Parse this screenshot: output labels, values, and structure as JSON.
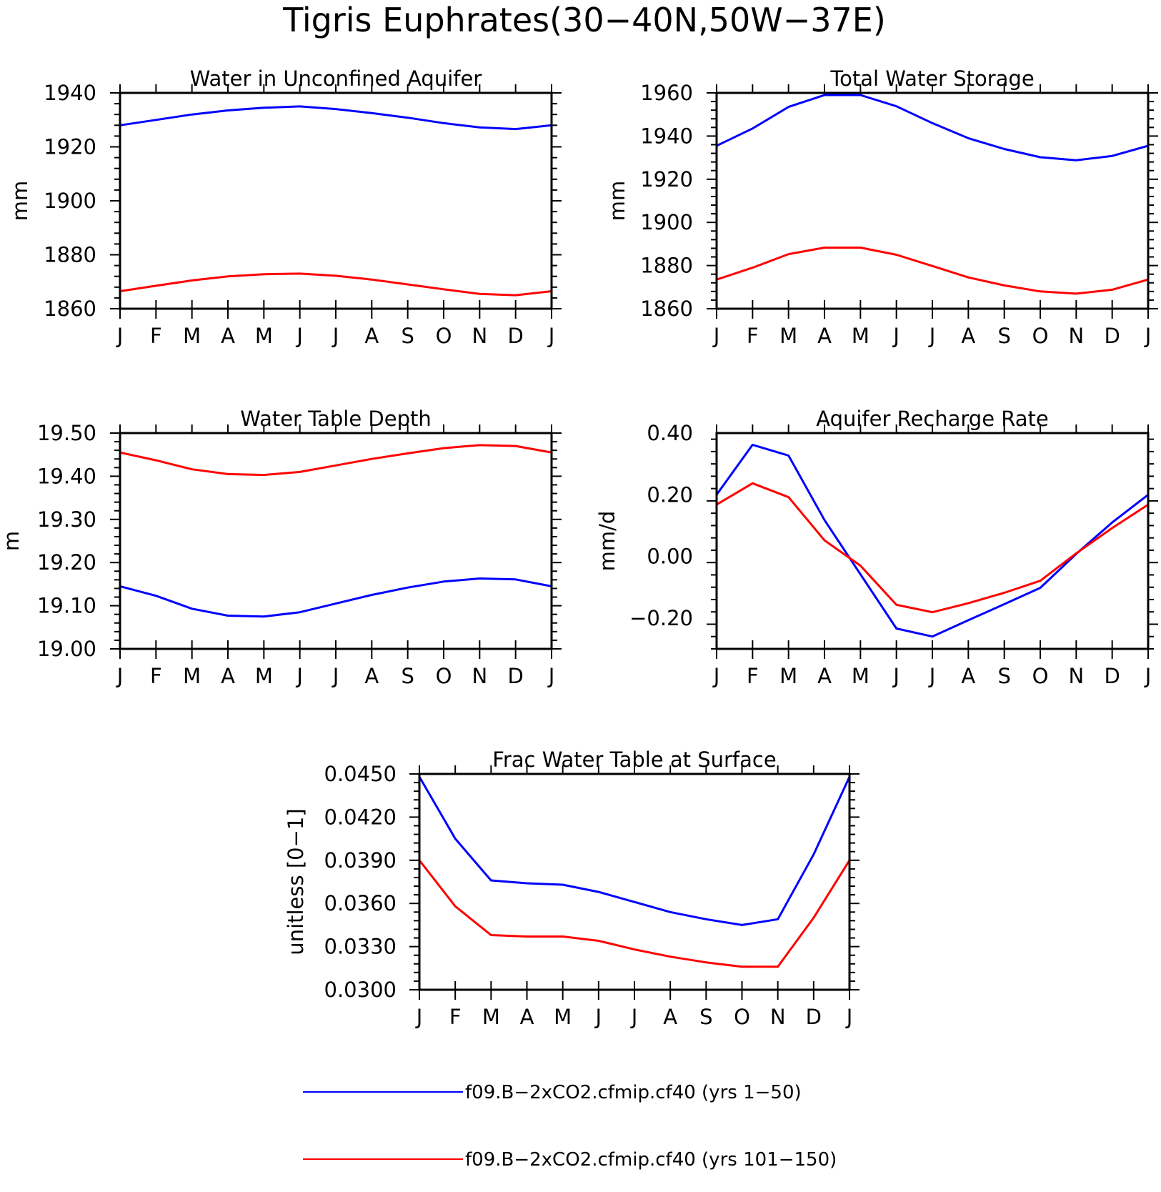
{
  "title": "Tigris Euphrates(30−40N,50W−37E)",
  "colors": {
    "series_1": "#0000ff",
    "series_2": "#ff0000",
    "axis": "#000000"
  },
  "legend": [
    {
      "label": "f09.B−2xCO2.cfmip.cf40 (yrs 1−50)",
      "color": "#0000ff"
    },
    {
      "label": "f09.B−2xCO2.cfmip.cf40 (yrs 101−150)",
      "color": "#ff0000"
    }
  ],
  "chart_data": [
    {
      "type": "line",
      "title": "Water in Unconfined Aquifer",
      "ylabel": "mm",
      "xlabel": "",
      "categories": [
        "J",
        "F",
        "M",
        "A",
        "M",
        "J",
        "J",
        "A",
        "S",
        "O",
        "N",
        "D",
        "J"
      ],
      "ylim": [
        1860,
        1940
      ],
      "yticks": [
        "1940",
        "1920",
        "1900",
        "1880",
        "1860"
      ],
      "grid": false,
      "series": [
        {
          "name": "f09.B−2xCO2.cfmip.cf40 (yrs 1−50)",
          "color": "#0000ff",
          "values": [
            1928,
            1930,
            1932,
            1933.5,
            1934.5,
            1935,
            1934,
            1932.5,
            1930.8,
            1928.8,
            1927.2,
            1926.6,
            1928
          ]
        },
        {
          "name": "f09.B−2xCO2.cfmip.cf40 (yrs 101−150)",
          "color": "#ff0000",
          "values": [
            1866.5,
            1868.5,
            1870.5,
            1872,
            1872.8,
            1873,
            1872.2,
            1870.8,
            1869,
            1867.2,
            1865.5,
            1865,
            1866.5
          ]
        }
      ]
    },
    {
      "type": "line",
      "title": "Total Water Storage",
      "ylabel": "mm",
      "xlabel": "",
      "categories": [
        "J",
        "F",
        "M",
        "A",
        "M",
        "J",
        "J",
        "A",
        "S",
        "O",
        "N",
        "D",
        "J"
      ],
      "ylim": [
        1860,
        1960
      ],
      "yticks": [
        "1960",
        "1940",
        "1920",
        "1900",
        "1880",
        "1860"
      ],
      "grid": false,
      "series": [
        {
          "name": "f09.B−2xCO2.cfmip.cf40 (yrs 1−50)",
          "color": "#0000ff",
          "values": [
            1935.5,
            1943.5,
            1953.5,
            1959,
            1959,
            1953.8,
            1946,
            1939,
            1934,
            1930.2,
            1928.8,
            1930.8,
            1935.5
          ]
        },
        {
          "name": "f09.B−2xCO2.cfmip.cf40 (yrs 101−150)",
          "color": "#ff0000",
          "values": [
            1873.5,
            1879,
            1885.3,
            1888.3,
            1888.3,
            1885,
            1879.8,
            1874.5,
            1870.8,
            1868,
            1867,
            1868.8,
            1873.5
          ]
        }
      ]
    },
    {
      "type": "line",
      "title": "Water Table Depth",
      "ylabel": "m",
      "xlabel": "",
      "categories": [
        "J",
        "F",
        "M",
        "A",
        "M",
        "J",
        "J",
        "A",
        "S",
        "O",
        "N",
        "D",
        "J"
      ],
      "ylim": [
        19.0,
        19.5
      ],
      "yticks": [
        "19.50",
        "19.40",
        "19.30",
        "19.20",
        "19.10",
        "19.00"
      ],
      "grid": false,
      "series": [
        {
          "name": "f09.B−2xCO2.cfmip.cf40 (yrs 1−50)",
          "color": "#0000ff",
          "values": [
            19.145,
            19.123,
            19.093,
            19.077,
            19.075,
            19.085,
            19.105,
            19.125,
            19.142,
            19.156,
            19.163,
            19.161,
            19.145
          ]
        },
        {
          "name": "f09.B−2xCO2.cfmip.cf40 (yrs 101−150)",
          "color": "#ff0000",
          "values": [
            19.455,
            19.437,
            19.416,
            19.405,
            19.403,
            19.41,
            19.425,
            19.44,
            19.453,
            19.465,
            19.472,
            19.47,
            19.455
          ]
        }
      ]
    },
    {
      "type": "line",
      "title": "Aquifer Recharge Rate",
      "ylabel": "mm/d",
      "xlabel": "",
      "categories": [
        "J",
        "F",
        "M",
        "A",
        "M",
        "J",
        "J",
        "A",
        "S",
        "O",
        "N",
        "D",
        "J"
      ],
      "ylim": [
        -0.3,
        0.4
      ],
      "yticks": [
        "0.40",
        "0.20",
        "0.00",
        "−0.20"
      ],
      "grid": false,
      "series": [
        {
          "name": "f09.B−2xCO2.cfmip.cf40 (yrs 1−50)",
          "color": "#0000ff",
          "values": [
            0.2,
            0.362,
            0.327,
            0.118,
            -0.058,
            -0.234,
            -0.26,
            -0.207,
            -0.155,
            -0.102,
            0.008,
            0.11,
            0.2
          ]
        },
        {
          "name": "f09.B−2xCO2.cfmip.cf40 (yrs 101−150)",
          "color": "#ff0000",
          "values": [
            0.168,
            0.237,
            0.192,
            0.052,
            -0.03,
            -0.157,
            -0.181,
            -0.152,
            -0.118,
            -0.079,
            0.01,
            0.092,
            0.168
          ]
        }
      ]
    },
    {
      "type": "line",
      "title": "Frac Water Table at Surface",
      "ylabel": "unitless [0−1]",
      "xlabel": "",
      "categories": [
        "J",
        "F",
        "M",
        "A",
        "M",
        "J",
        "J",
        "A",
        "S",
        "O",
        "N",
        "D",
        "J"
      ],
      "ylim": [
        0.03,
        0.045
      ],
      "yticks": [
        "0.0450",
        "0.0420",
        "0.0390",
        "0.0360",
        "0.0330",
        "0.0300"
      ],
      "grid": false,
      "series": [
        {
          "name": "f09.B−2xCO2.cfmip.cf40 (yrs 1−50)",
          "color": "#0000ff",
          "values": [
            0.0448,
            0.0405,
            0.0376,
            0.0374,
            0.0373,
            0.0368,
            0.0361,
            0.0354,
            0.0349,
            0.0345,
            0.0349,
            0.0394,
            0.0448
          ]
        },
        {
          "name": "f09.B−2xCO2.cfmip.cf40 (yrs 101−150)",
          "color": "#ff0000",
          "values": [
            0.039,
            0.0358,
            0.0338,
            0.0337,
            0.0337,
            0.0334,
            0.0328,
            0.0323,
            0.0319,
            0.0316,
            0.0316,
            0.035,
            0.039
          ]
        }
      ]
    }
  ]
}
